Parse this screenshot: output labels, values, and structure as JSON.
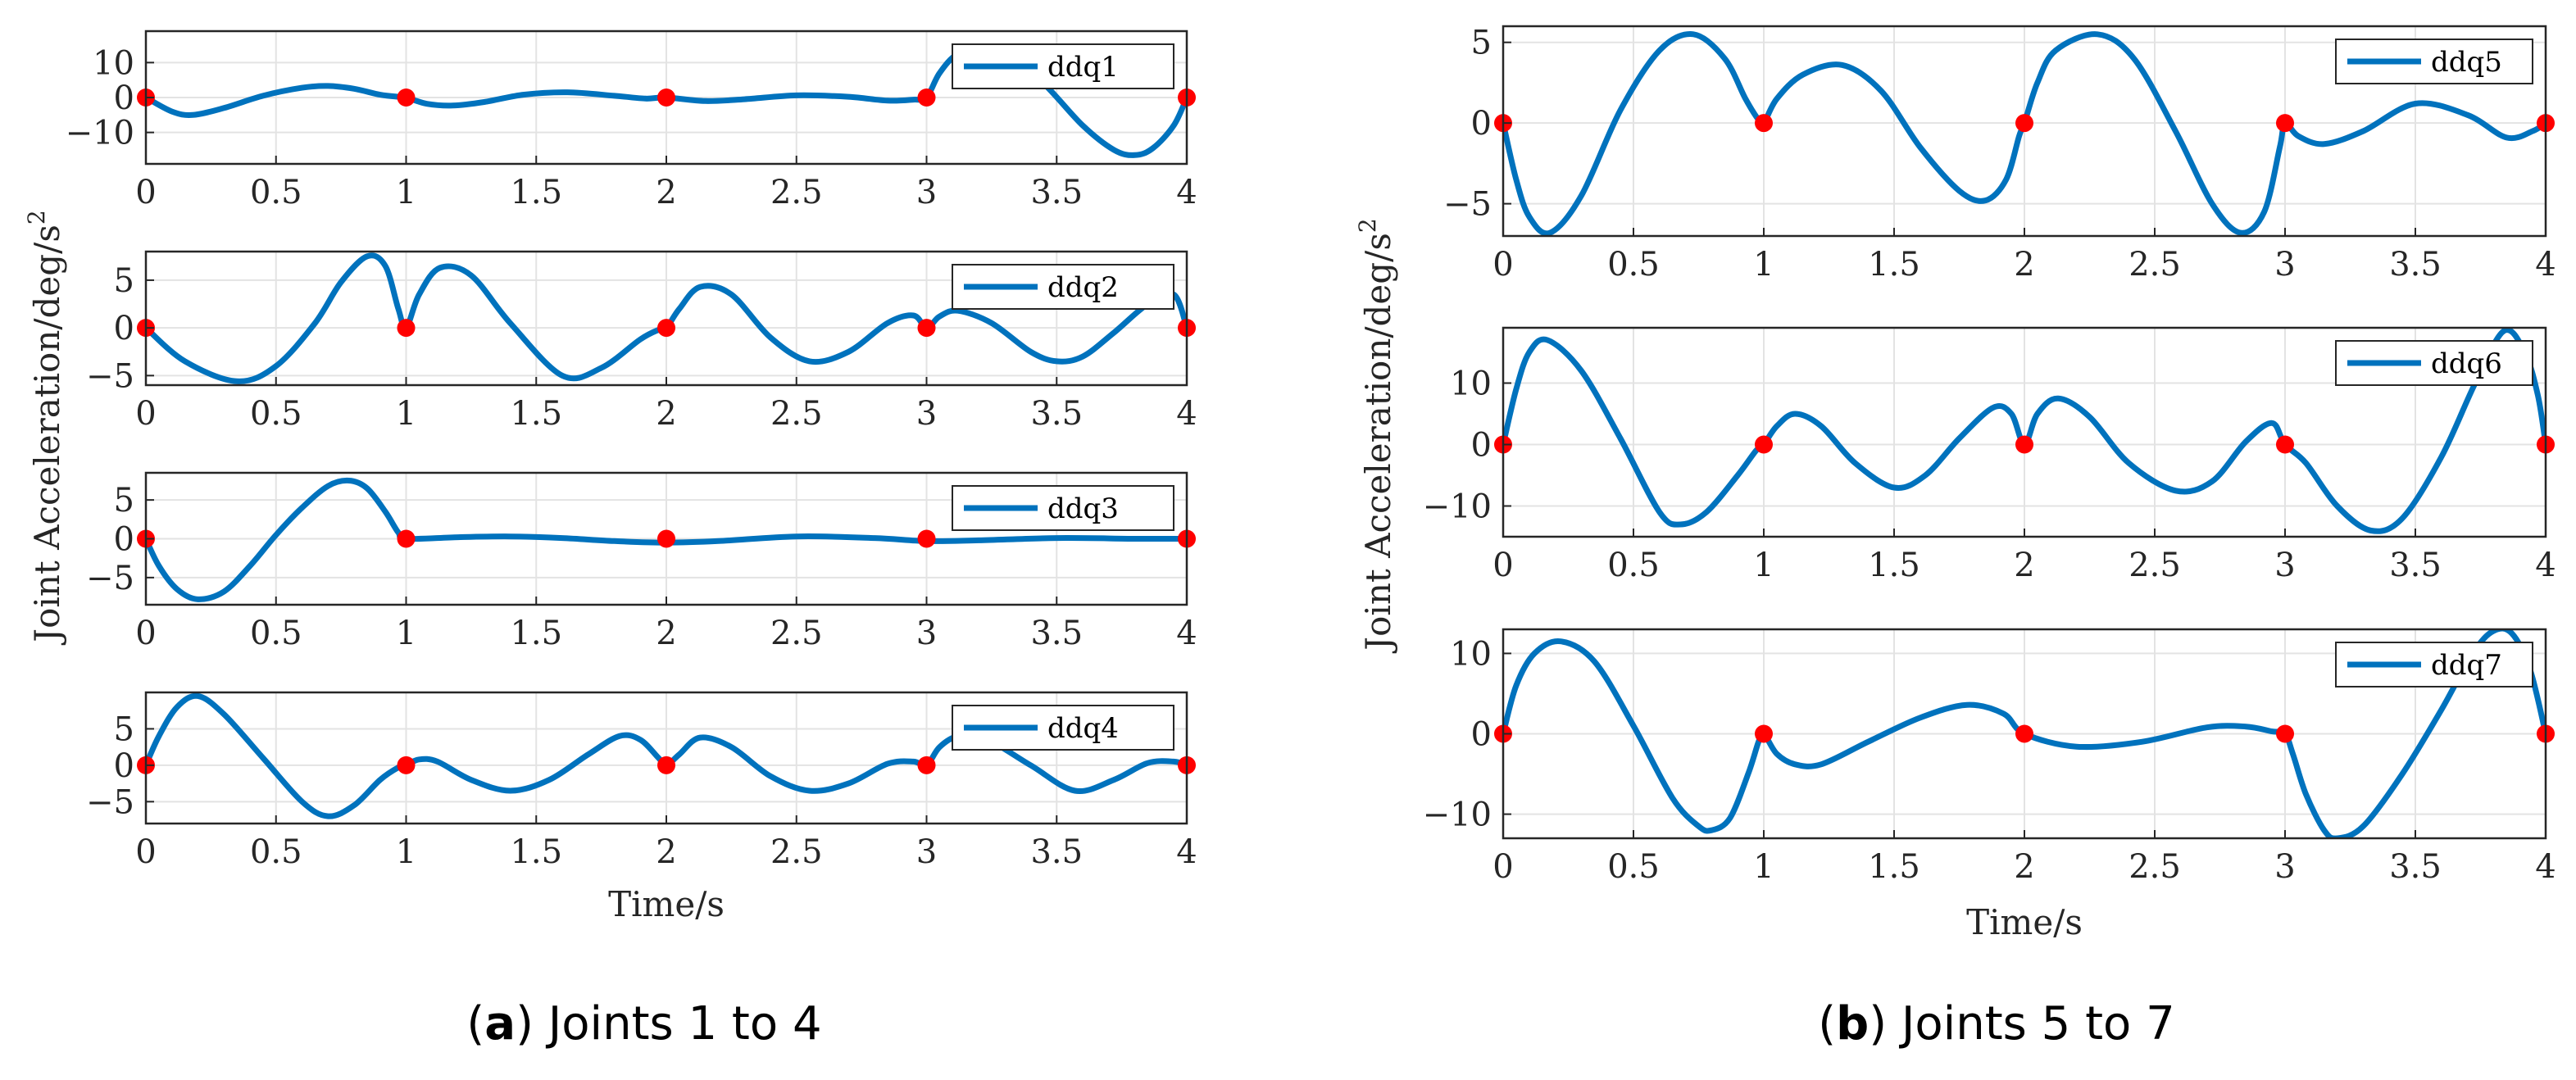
{
  "figure": {
    "caption_a_tag": "a",
    "caption_a_text": " Joints 1 to 4",
    "caption_b_tag": "b",
    "caption_b_text": " Joints 5 to 7"
  },
  "chart_data": [
    {
      "type": "line",
      "panel": "a",
      "ylabel": "Joint Acceleration/deg/s",
      "ylabel_superscript": "2",
      "xlabel": "Time/s",
      "colors": {
        "line": "#0072BD",
        "marker": "#FF0000"
      },
      "subplots": [
        {
          "series_name": "ddq1",
          "xlim": [
            0,
            4
          ],
          "ylim": [
            -19,
            19
          ],
          "xticks": [
            "0",
            "0.5",
            "1",
            "1.5",
            "2",
            "2.5",
            "3",
            "3.5",
            "4"
          ],
          "yticks": [
            {
              "v": 10,
              "label": "10"
            },
            {
              "v": 0,
              "label": "0"
            },
            {
              "v": -10,
              "label": "−10"
            }
          ],
          "x": [
            0,
            0.1,
            0.18,
            0.3,
            0.45,
            0.6,
            0.7,
            0.8,
            0.9,
            0.97,
            1,
            1.08,
            1.18,
            1.3,
            1.45,
            1.62,
            1.8,
            1.92,
            2,
            2.15,
            2.3,
            2.5,
            2.7,
            2.85,
            2.95,
            3,
            3.05,
            3.12,
            3.22,
            3.3,
            3.45,
            3.6,
            3.72,
            3.8,
            3.87,
            3.95,
            4
          ],
          "values": [
            0,
            -4,
            -5,
            -3,
            0.5,
            2.8,
            3.3,
            2.5,
            0.8,
            0.2,
            0,
            -1.8,
            -2.3,
            -1.3,
            0.8,
            1.5,
            0.5,
            -0.3,
            0,
            -1,
            -0.5,
            0.6,
            0.2,
            -0.9,
            -0.6,
            0,
            7,
            12.5,
            14.5,
            13,
            4,
            -8,
            -15,
            -16.5,
            -14.5,
            -8,
            0
          ],
          "markers_x": [
            0,
            1,
            2,
            3,
            4
          ],
          "markers_y": [
            0,
            0,
            0,
            0,
            0
          ]
        },
        {
          "series_name": "ddq2",
          "xlim": [
            0,
            4
          ],
          "ylim": [
            -6,
            8
          ],
          "xticks": [
            "0",
            "0.5",
            "1",
            "1.5",
            "2",
            "2.5",
            "3",
            "3.5",
            "4"
          ],
          "yticks": [
            {
              "v": 5,
              "label": "5"
            },
            {
              "v": 0,
              "label": "0"
            },
            {
              "v": -5,
              "label": "−5"
            }
          ],
          "x": [
            0,
            0.15,
            0.35,
            0.5,
            0.65,
            0.75,
            0.85,
            0.92,
            0.97,
            1,
            1.05,
            1.13,
            1.25,
            1.4,
            1.6,
            1.75,
            1.9,
            1.97,
            2,
            2.05,
            2.13,
            2.25,
            2.4,
            2.55,
            2.7,
            2.85,
            2.95,
            3,
            3.05,
            3.12,
            3.25,
            3.4,
            3.5,
            3.6,
            3.72,
            3.85,
            3.95,
            4
          ],
          "values": [
            0,
            -3.5,
            -5.6,
            -4,
            0.5,
            4.8,
            7.5,
            6.5,
            2,
            0,
            3.5,
            6.3,
            5.5,
            0.5,
            -5,
            -4.2,
            -1.2,
            -0.2,
            0,
            2,
            4.3,
            3.5,
            -1,
            -3.5,
            -2.5,
            0.5,
            1.3,
            0,
            1.2,
            1.8,
            0.5,
            -2.5,
            -3.5,
            -3,
            -0.5,
            2.5,
            3.5,
            0
          ],
          "markers_x": [
            0,
            1,
            2,
            3,
            4
          ],
          "markers_y": [
            0,
            0,
            0,
            0,
            0
          ]
        },
        {
          "series_name": "ddq3",
          "xlim": [
            0,
            4
          ],
          "ylim": [
            -8.5,
            8.5
          ],
          "xticks": [
            "0",
            "0.5",
            "1",
            "1.5",
            "2",
            "2.5",
            "3",
            "3.5",
            "4"
          ],
          "yticks": [
            {
              "v": 5,
              "label": "5"
            },
            {
              "v": 0,
              "label": "0"
            },
            {
              "v": -5,
              "label": "−5"
            }
          ],
          "x": [
            0,
            0.05,
            0.12,
            0.2,
            0.3,
            0.4,
            0.5,
            0.6,
            0.7,
            0.78,
            0.85,
            0.92,
            0.97,
            1,
            1.2,
            1.4,
            1.6,
            1.8,
            2,
            2.2,
            2.5,
            2.8,
            3,
            3.2,
            3.5,
            3.8,
            4
          ],
          "values": [
            0,
            -3.5,
            -6.5,
            -7.8,
            -6.8,
            -3.5,
            0.5,
            4,
            6.8,
            7.5,
            6.5,
            3.5,
            0.8,
            0,
            0.2,
            0.3,
            0.1,
            -0.3,
            -0.5,
            -0.3,
            0.3,
            0.1,
            -0.3,
            -0.2,
            0.1,
            0,
            0
          ],
          "markers_x": [
            0,
            1,
            2,
            3,
            4
          ],
          "markers_y": [
            0,
            0,
            0,
            0,
            0
          ]
        },
        {
          "series_name": "ddq4",
          "xlim": [
            0,
            4
          ],
          "ylim": [
            -8,
            10
          ],
          "xticks": [
            "0",
            "0.5",
            "1",
            "1.5",
            "2",
            "2.5",
            "3",
            "3.5",
            "4"
          ],
          "yticks": [
            {
              "v": 5,
              "label": "5"
            },
            {
              "v": 0,
              "label": "0"
            },
            {
              "v": -5,
              "label": "−5"
            }
          ],
          "x": [
            0,
            0.05,
            0.12,
            0.2,
            0.3,
            0.45,
            0.6,
            0.7,
            0.8,
            0.9,
            0.97,
            1,
            1.05,
            1.12,
            1.25,
            1.4,
            1.55,
            1.7,
            1.82,
            1.9,
            1.97,
            2,
            2.05,
            2.13,
            2.25,
            2.4,
            2.55,
            2.7,
            2.85,
            2.95,
            3,
            3.05,
            3.12,
            3.22,
            3.4,
            3.57,
            3.72,
            3.85,
            3.95,
            4
          ],
          "values": [
            0,
            4,
            8,
            9.5,
            7,
            1,
            -5,
            -7,
            -5.5,
            -2,
            -0.3,
            0,
            0.8,
            0.5,
            -2,
            -3.5,
            -2,
            1.5,
            4,
            3.5,
            1,
            0,
            1.5,
            3.8,
            2.5,
            -1.5,
            -3.5,
            -2.5,
            0.2,
            0.5,
            0,
            2.5,
            4,
            3.8,
            0,
            -3.5,
            -2,
            0.3,
            0.5,
            0
          ],
          "markers_x": [
            0,
            1,
            2,
            3,
            4
          ],
          "markers_y": [
            0,
            0,
            0,
            0,
            0
          ]
        }
      ]
    },
    {
      "type": "line",
      "panel": "b",
      "ylabel": "Joint Acceleration/deg/s",
      "ylabel_superscript": "2",
      "xlabel": "Time/s",
      "colors": {
        "line": "#0072BD",
        "marker": "#FF0000"
      },
      "subplots": [
        {
          "series_name": "ddq5",
          "xlim": [
            0,
            4
          ],
          "ylim": [
            -7,
            6
          ],
          "xticks": [
            "0",
            "0.5",
            "1",
            "1.5",
            "2",
            "2.5",
            "3",
            "3.5",
            "4"
          ],
          "yticks": [
            {
              "v": 5,
              "label": "5"
            },
            {
              "v": 0,
              "label": "0"
            },
            {
              "v": -5,
              "label": "−5"
            }
          ],
          "x": [
            0,
            0.05,
            0.1,
            0.18,
            0.3,
            0.45,
            0.6,
            0.73,
            0.85,
            0.93,
            0.98,
            1,
            1.05,
            1.15,
            1.3,
            1.45,
            1.6,
            1.75,
            1.85,
            1.93,
            1.98,
            2,
            2.05,
            2.12,
            2.28,
            2.42,
            2.58,
            2.72,
            2.83,
            2.92,
            2.98,
            3,
            3.05,
            3.15,
            3.3,
            3.5,
            3.7,
            3.85,
            3.95,
            4
          ],
          "values": [
            0,
            -3.5,
            -5.8,
            -6.8,
            -4.5,
            0.8,
            4.5,
            5.5,
            4,
            1.5,
            0.2,
            0,
            1.5,
            3,
            3.6,
            2,
            -1.5,
            -4.2,
            -4.8,
            -3.5,
            -0.8,
            0,
            2.5,
            4.5,
            5.5,
            4,
            -0.5,
            -5,
            -6.8,
            -5.5,
            -1.5,
            0,
            -0.8,
            -1.3,
            -0.5,
            1.2,
            0.5,
            -0.9,
            -0.5,
            0
          ],
          "markers_x": [
            0,
            1,
            2,
            3,
            4
          ],
          "markers_y": [
            0,
            0,
            0,
            0,
            0
          ]
        },
        {
          "series_name": "ddq6",
          "xlim": [
            0,
            4
          ],
          "ylim": [
            -15,
            19
          ],
          "xticks": [
            "0",
            "0.5",
            "1",
            "1.5",
            "2",
            "2.5",
            "3",
            "3.5",
            "4"
          ],
          "yticks": [
            {
              "v": 10,
              "label": "10"
            },
            {
              "v": 0,
              "label": "0"
            },
            {
              "v": -10,
              "label": "−10"
            }
          ],
          "x": [
            0,
            0.05,
            0.1,
            0.17,
            0.3,
            0.45,
            0.6,
            0.68,
            0.78,
            0.9,
            0.97,
            1,
            1.05,
            1.12,
            1.22,
            1.35,
            1.5,
            1.62,
            1.75,
            1.88,
            1.95,
            2,
            2.05,
            2.13,
            2.25,
            2.4,
            2.58,
            2.72,
            2.85,
            2.95,
            3,
            3.08,
            3.2,
            3.33,
            3.45,
            3.6,
            3.73,
            3.84,
            3.92,
            3.97,
            4
          ],
          "values": [
            0,
            9,
            15,
            17,
            12,
            1,
            -11,
            -13,
            -11,
            -5,
            -1,
            0,
            3,
            5,
            3,
            -3,
            -7,
            -5,
            1,
            6,
            5,
            0,
            5,
            7.5,
            4.5,
            -3,
            -7.5,
            -6,
            0.5,
            3.5,
            0,
            -3,
            -10,
            -14,
            -12,
            -2,
            10,
            18.5,
            15,
            8,
            0
          ],
          "markers_x": [
            0,
            1,
            2,
            3,
            4
          ],
          "markers_y": [
            0,
            0,
            0,
            0,
            0
          ]
        },
        {
          "series_name": "ddq7",
          "xlim": [
            0,
            4
          ],
          "ylim": [
            -13,
            13
          ],
          "xticks": [
            "0",
            "0.5",
            "1",
            "1.5",
            "2",
            "2.5",
            "3",
            "3.5",
            "4"
          ],
          "yticks": [
            {
              "v": 10,
              "label": "10"
            },
            {
              "v": 0,
              "label": "0"
            },
            {
              "v": -10,
              "label": "−10"
            }
          ],
          "x": [
            0,
            0.05,
            0.12,
            0.22,
            0.35,
            0.5,
            0.65,
            0.75,
            0.8,
            0.87,
            0.94,
            0.98,
            1,
            1.05,
            1.12,
            1.22,
            1.4,
            1.6,
            1.78,
            1.92,
            2,
            2.2,
            2.45,
            2.7,
            2.85,
            2.95,
            3,
            3.03,
            3.08,
            3.15,
            3.2,
            3.3,
            3.45,
            3.6,
            3.72,
            3.8,
            3.87,
            3.94,
            4
          ],
          "values": [
            0,
            6,
            10,
            11.5,
            9,
            1,
            -8,
            -11.5,
            -12,
            -10.5,
            -5,
            -1,
            0,
            -2.5,
            -3.8,
            -3.8,
            -1,
            2,
            3.6,
            2.5,
            0,
            -1.6,
            -1,
            0.8,
            0.9,
            0.3,
            0,
            -2.5,
            -7.5,
            -12,
            -13,
            -11.5,
            -5,
            3,
            10,
            12.8,
            12.5,
            8,
            0
          ],
          "markers_x": [
            0,
            1,
            2,
            3,
            4
          ],
          "markers_y": [
            0,
            0,
            0,
            0,
            0
          ]
        }
      ]
    }
  ]
}
